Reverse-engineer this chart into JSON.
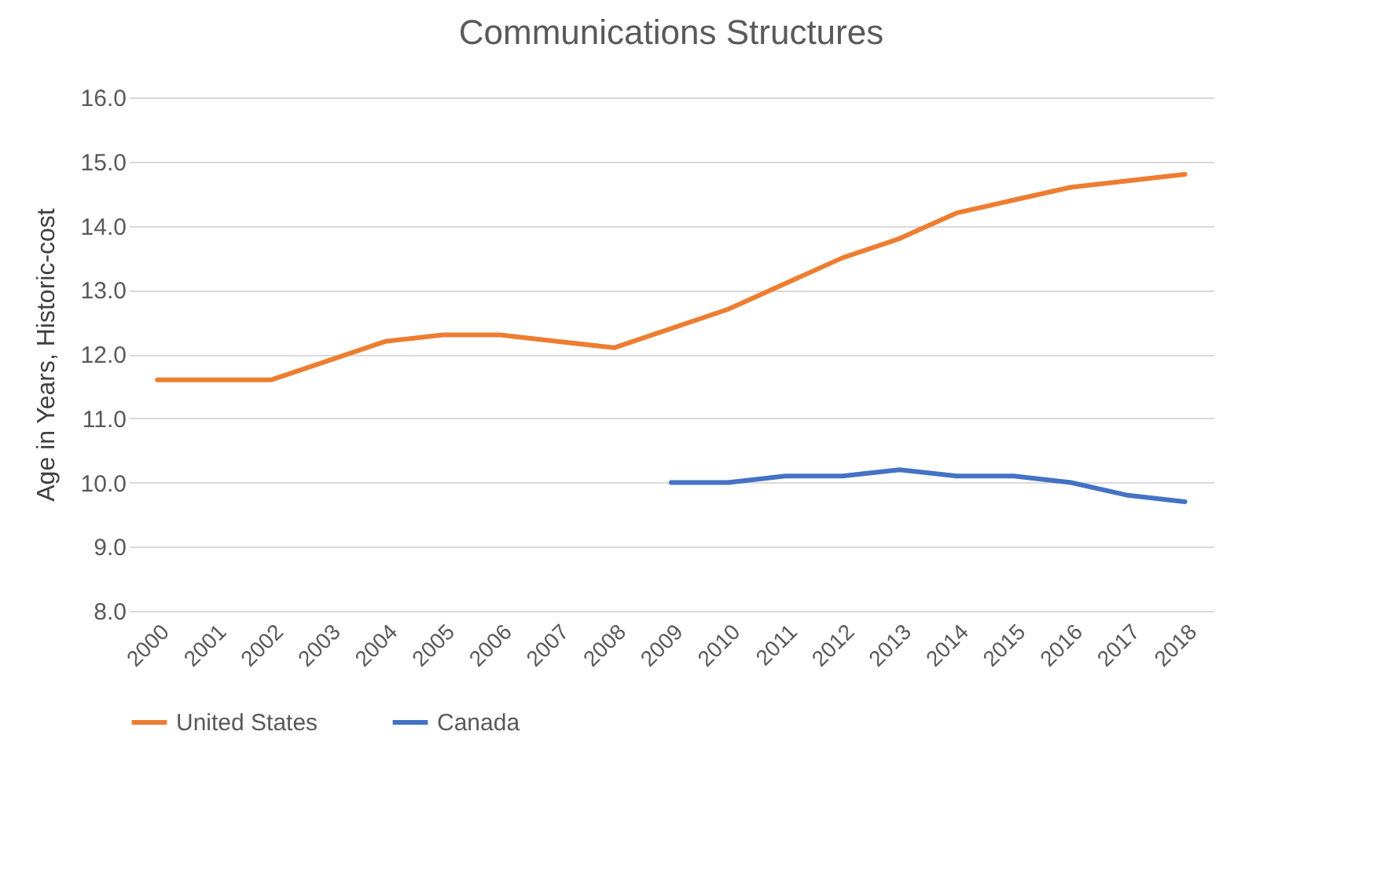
{
  "chart_data": {
    "type": "line",
    "title": "Communications Structures",
    "ylabel": "Age in Years, Historic-cost",
    "categories": [
      "2000",
      "2001",
      "2002",
      "2003",
      "2004",
      "2005",
      "2006",
      "2007",
      "2008",
      "2009",
      "2010",
      "2011",
      "2012",
      "2013",
      "2014",
      "2015",
      "2016",
      "2017",
      "2018"
    ],
    "series": [
      {
        "name": "United States",
        "color": "#ed7d31",
        "values": [
          11.6,
          11.6,
          11.6,
          11.9,
          12.2,
          12.3,
          12.3,
          12.2,
          12.1,
          12.4,
          12.7,
          13.1,
          13.5,
          13.8,
          14.2,
          14.4,
          14.6,
          14.7,
          14.8
        ]
      },
      {
        "name": "Canada",
        "color": "#4472c4",
        "values": [
          null,
          null,
          null,
          null,
          null,
          null,
          null,
          null,
          null,
          10.0,
          10.0,
          10.1,
          10.1,
          10.2,
          10.1,
          10.1,
          10.0,
          9.8,
          9.7
        ]
      }
    ],
    "ylim": [
      8,
      16
    ],
    "yticks": [
      {
        "value": 8,
        "label": "8.0"
      },
      {
        "value": 9,
        "label": "9.0"
      },
      {
        "value": 10,
        "label": "10.0"
      },
      {
        "value": 11,
        "label": "11.0"
      },
      {
        "value": 12,
        "label": "12.0"
      },
      {
        "value": 13,
        "label": "13.0"
      },
      {
        "value": 14,
        "label": "14.0"
      },
      {
        "value": 15,
        "label": "15.0"
      },
      {
        "value": 16,
        "label": "16.0"
      }
    ],
    "grid": "y",
    "legend": "bottom",
    "marker": "none",
    "line_style": "solid"
  }
}
